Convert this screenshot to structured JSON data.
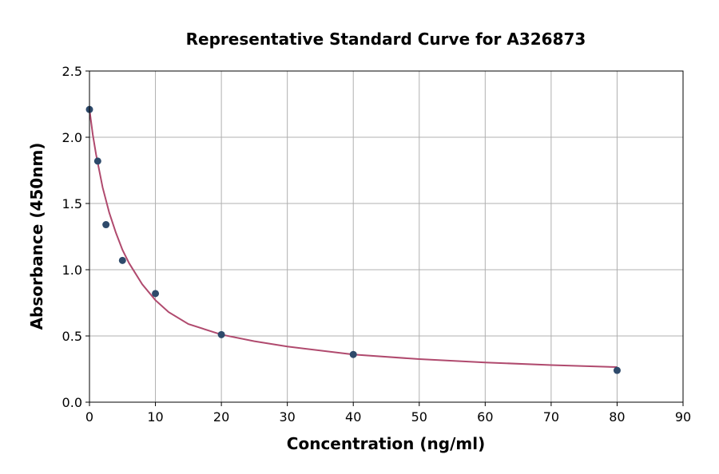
{
  "chart_data": {
    "type": "scatter",
    "title": "Representative Standard Curve for A326873",
    "xlabel": "Concentration (ng/ml)",
    "ylabel": "Absorbance (450nm)",
    "xlim": [
      0,
      90
    ],
    "ylim": [
      0,
      2.5
    ],
    "xticks": [
      "0",
      "10",
      "20",
      "30",
      "40",
      "50",
      "60",
      "70",
      "80",
      "90"
    ],
    "yticks": [
      "0.0",
      "0.5",
      "1.0",
      "1.5",
      "2.0",
      "2.5"
    ],
    "grid": true,
    "points": {
      "x": [
        0,
        1.25,
        2.5,
        5,
        10,
        20,
        40,
        80
      ],
      "y": [
        2.21,
        1.82,
        1.34,
        1.07,
        0.82,
        0.51,
        0.36,
        0.24
      ]
    },
    "fit_curve": {
      "x": [
        0,
        0.5,
        1,
        2,
        3,
        4,
        5,
        6,
        8,
        10,
        12,
        15,
        20,
        25,
        30,
        40,
        50,
        60,
        70,
        80
      ],
      "y": [
        2.21,
        2.02,
        1.87,
        1.62,
        1.43,
        1.28,
        1.15,
        1.05,
        0.89,
        0.77,
        0.68,
        0.59,
        0.51,
        0.46,
        0.42,
        0.36,
        0.325,
        0.3,
        0.28,
        0.265
      ]
    },
    "colors": {
      "points": "#2e4a6b",
      "curve": "#b04a6e"
    }
  }
}
